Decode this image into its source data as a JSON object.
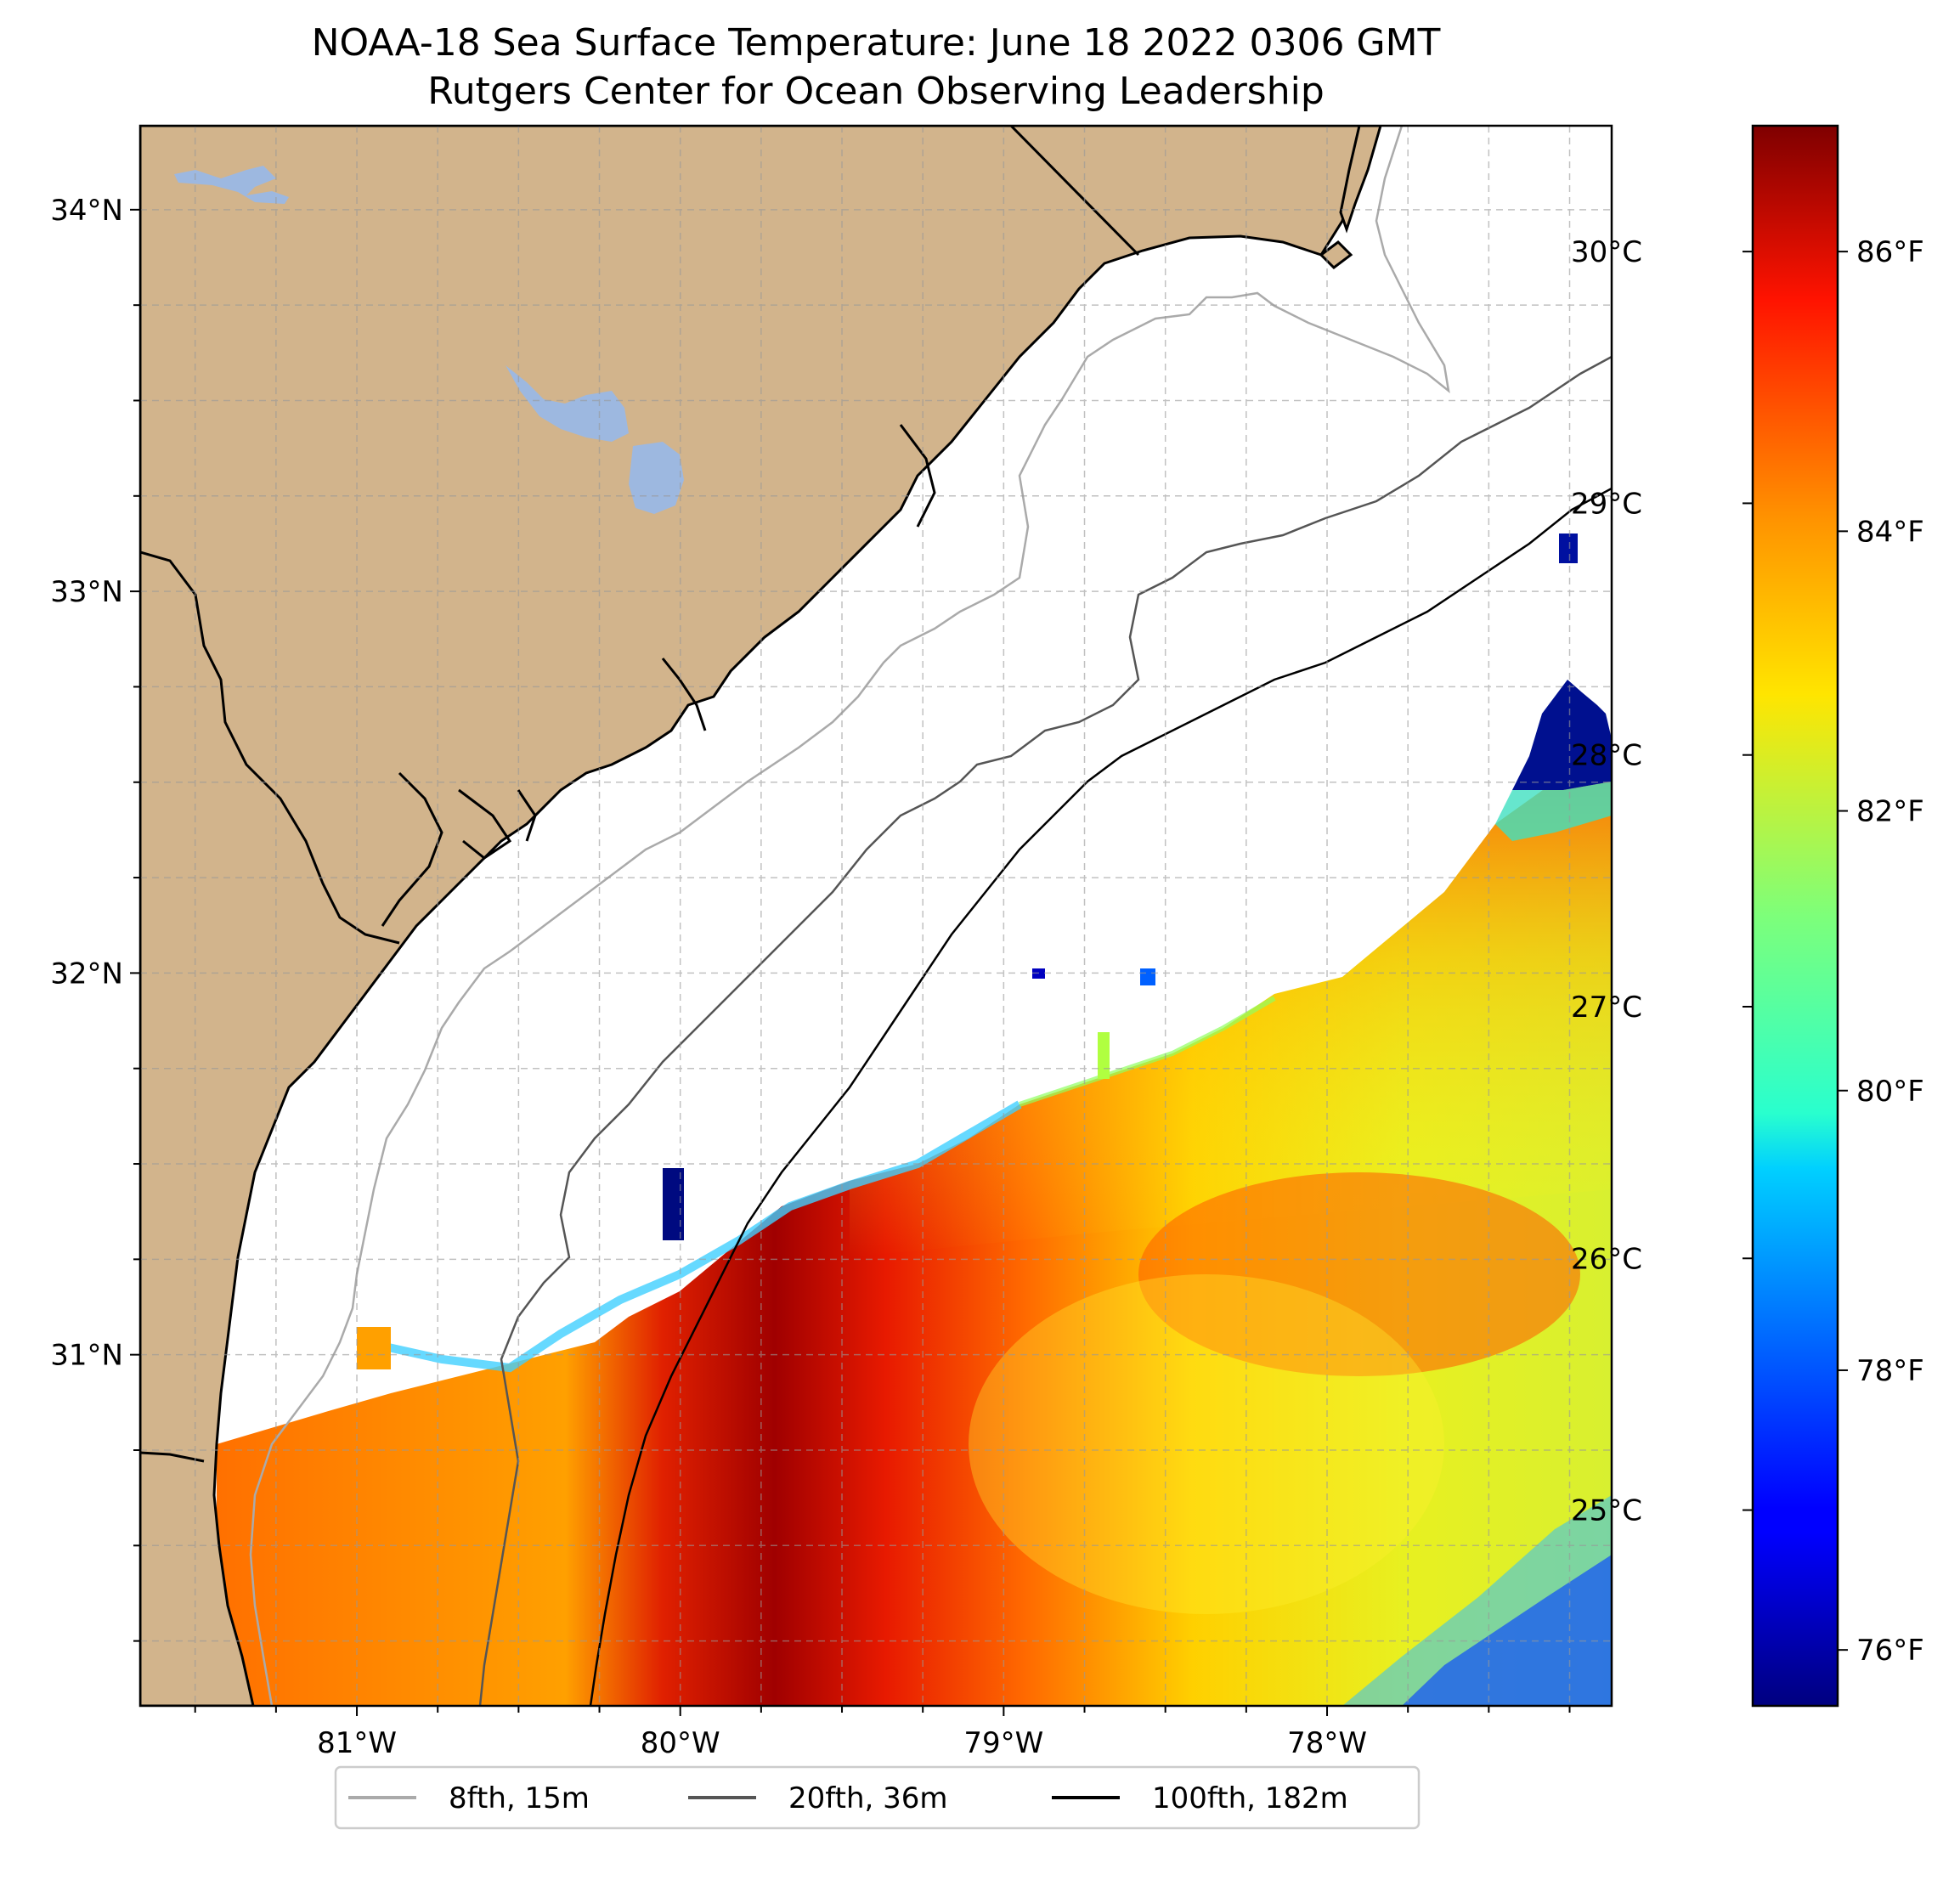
{
  "title": {
    "line1": "NOAA-18 Sea Surface Temperature: June 18 2022 0306 GMT",
    "line2": "Rutgers Center for Ocean Observing Leadership"
  },
  "axes": {
    "lon_ticks": [
      {
        "value": -81,
        "label": "81°W"
      },
      {
        "value": -80,
        "label": "80°W"
      },
      {
        "value": -79,
        "label": "79°W"
      },
      {
        "value": -78,
        "label": "78°W"
      }
    ],
    "lat_ticks": [
      {
        "value": 34,
        "label": "34°N"
      },
      {
        "value": 33,
        "label": "33°N"
      },
      {
        "value": 32,
        "label": "32°N"
      },
      {
        "value": 31,
        "label": "31°N"
      }
    ],
    "lon_range": [
      -81.67,
      -77.12
    ],
    "lat_range": [
      30.08,
      34.22
    ]
  },
  "colorbar": {
    "celsius_ticks": [
      {
        "value": 25,
        "label": "25°C"
      },
      {
        "value": 26,
        "label": "26°C"
      },
      {
        "value": 27,
        "label": "27°C"
      },
      {
        "value": 28,
        "label": "28°C"
      },
      {
        "value": 29,
        "label": "29°C"
      },
      {
        "value": 30,
        "label": "30°C"
      }
    ],
    "fahrenheit_ticks": [
      {
        "value": 76,
        "label": "76°F"
      },
      {
        "value": 78,
        "label": "78°F"
      },
      {
        "value": 80,
        "label": "80°F"
      },
      {
        "value": 82,
        "label": "82°F"
      },
      {
        "value": 84,
        "label": "84°F"
      },
      {
        "value": 86,
        "label": "86°F"
      }
    ],
    "range_f": [
      75.6,
      86.9
    ],
    "colormap": "jet"
  },
  "legend": {
    "items": [
      {
        "label": "8fth, 15m",
        "color": "#aaaaaa"
      },
      {
        "label": "20fth, 36m",
        "color": "#555555"
      },
      {
        "label": "100fth, 182m",
        "color": "#000000"
      }
    ]
  },
  "colors": {
    "land": "#d2b48c",
    "lakes": "#9db8e0",
    "coast": "#000000"
  }
}
